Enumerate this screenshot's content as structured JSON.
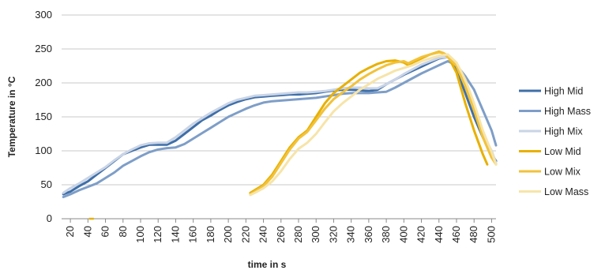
{
  "chart_data": {
    "type": "line",
    "title": "",
    "xlabel": "time in s",
    "ylabel": "Temperature in °C",
    "xlim": [
      10,
      505
    ],
    "ylim": [
      0,
      300
    ],
    "yticks": [
      0,
      50,
      100,
      150,
      200,
      250,
      300
    ],
    "xticks": [
      20,
      40,
      60,
      80,
      100,
      120,
      140,
      160,
      180,
      200,
      220,
      240,
      260,
      280,
      300,
      320,
      340,
      360,
      380,
      400,
      420,
      440,
      460,
      480,
      500
    ],
    "grid": "horizontal",
    "legend_position": "right",
    "series": [
      {
        "name": "High Mid",
        "color": "#3f6fa8",
        "points": [
          [
            12,
            36
          ],
          [
            20,
            40
          ],
          [
            30,
            48
          ],
          [
            40,
            55
          ],
          [
            50,
            65
          ],
          [
            60,
            75
          ],
          [
            70,
            85
          ],
          [
            80,
            95
          ],
          [
            90,
            100
          ],
          [
            100,
            105
          ],
          [
            110,
            109
          ],
          [
            120,
            109
          ],
          [
            130,
            109
          ],
          [
            140,
            115
          ],
          [
            150,
            125
          ],
          [
            160,
            135
          ],
          [
            170,
            145
          ],
          [
            180,
            152
          ],
          [
            190,
            160
          ],
          [
            200,
            167
          ],
          [
            210,
            172
          ],
          [
            220,
            176
          ],
          [
            230,
            179
          ],
          [
            240,
            180
          ],
          [
            250,
            181
          ],
          [
            260,
            182
          ],
          [
            270,
            183
          ],
          [
            280,
            183
          ],
          [
            290,
            184
          ],
          [
            300,
            185
          ],
          [
            310,
            187
          ],
          [
            320,
            189
          ],
          [
            330,
            190
          ],
          [
            340,
            190
          ],
          [
            350,
            189
          ],
          [
            360,
            188
          ],
          [
            370,
            190
          ],
          [
            380,
            198
          ],
          [
            390,
            205
          ],
          [
            400,
            212
          ],
          [
            410,
            218
          ],
          [
            420,
            224
          ],
          [
            430,
            230
          ],
          [
            440,
            236
          ],
          [
            450,
            238
          ],
          [
            455,
            233
          ],
          [
            460,
            220
          ],
          [
            470,
            185
          ],
          [
            480,
            150
          ],
          [
            490,
            120
          ],
          [
            500,
            95
          ],
          [
            505,
            85
          ]
        ]
      },
      {
        "name": "High Mass",
        "color": "#7e9ec8",
        "points": [
          [
            12,
            32
          ],
          [
            20,
            36
          ],
          [
            30,
            42
          ],
          [
            40,
            47
          ],
          [
            50,
            52
          ],
          [
            60,
            60
          ],
          [
            70,
            68
          ],
          [
            80,
            78
          ],
          [
            90,
            85
          ],
          [
            100,
            92
          ],
          [
            110,
            98
          ],
          [
            120,
            102
          ],
          [
            130,
            104
          ],
          [
            140,
            105
          ],
          [
            150,
            110
          ],
          [
            160,
            118
          ],
          [
            170,
            126
          ],
          [
            180,
            134
          ],
          [
            190,
            142
          ],
          [
            200,
            150
          ],
          [
            210,
            156
          ],
          [
            220,
            162
          ],
          [
            230,
            167
          ],
          [
            240,
            171
          ],
          [
            250,
            173
          ],
          [
            260,
            174
          ],
          [
            270,
            175
          ],
          [
            280,
            176
          ],
          [
            290,
            177
          ],
          [
            300,
            178
          ],
          [
            310,
            180
          ],
          [
            320,
            182
          ],
          [
            330,
            184
          ],
          [
            340,
            185
          ],
          [
            350,
            185
          ],
          [
            360,
            185
          ],
          [
            370,
            186
          ],
          [
            380,
            187
          ],
          [
            390,
            193
          ],
          [
            400,
            200
          ],
          [
            410,
            207
          ],
          [
            420,
            214
          ],
          [
            430,
            220
          ],
          [
            440,
            226
          ],
          [
            450,
            232
          ],
          [
            460,
            226
          ],
          [
            470,
            210
          ],
          [
            480,
            190
          ],
          [
            490,
            160
          ],
          [
            500,
            130
          ],
          [
            505,
            108
          ]
        ]
      },
      {
        "name": "High Mix",
        "color": "#c9d4e6",
        "points": [
          [
            12,
            38
          ],
          [
            20,
            45
          ],
          [
            30,
            52
          ],
          [
            40,
            60
          ],
          [
            50,
            68
          ],
          [
            60,
            76
          ],
          [
            70,
            86
          ],
          [
            80,
            95
          ],
          [
            90,
            102
          ],
          [
            100,
            108
          ],
          [
            110,
            111
          ],
          [
            120,
            112
          ],
          [
            130,
            112
          ],
          [
            140,
            120
          ],
          [
            150,
            130
          ],
          [
            160,
            140
          ],
          [
            170,
            148
          ],
          [
            180,
            156
          ],
          [
            190,
            163
          ],
          [
            200,
            170
          ],
          [
            210,
            175
          ],
          [
            220,
            178
          ],
          [
            230,
            181
          ],
          [
            240,
            182
          ],
          [
            250,
            183
          ],
          [
            260,
            184
          ],
          [
            270,
            185
          ],
          [
            280,
            186
          ],
          [
            290,
            186
          ],
          [
            300,
            187
          ],
          [
            310,
            188
          ],
          [
            320,
            190
          ],
          [
            330,
            192
          ],
          [
            340,
            193
          ],
          [
            350,
            193
          ],
          [
            360,
            192
          ],
          [
            370,
            192
          ],
          [
            380,
            198
          ],
          [
            390,
            205
          ],
          [
            400,
            213
          ],
          [
            410,
            220
          ],
          [
            420,
            227
          ],
          [
            430,
            232
          ],
          [
            440,
            237
          ],
          [
            450,
            238
          ],
          [
            460,
            225
          ],
          [
            470,
            195
          ],
          [
            480,
            160
          ],
          [
            490,
            125
          ],
          [
            500,
            100
          ],
          [
            505,
            82
          ]
        ]
      },
      {
        "name": "Low Mid",
        "color": "#e8b000",
        "points": [
          [
            225,
            38
          ],
          [
            230,
            42
          ],
          [
            240,
            50
          ],
          [
            250,
            65
          ],
          [
            260,
            85
          ],
          [
            270,
            105
          ],
          [
            280,
            120
          ],
          [
            290,
            130
          ],
          [
            300,
            150
          ],
          [
            310,
            170
          ],
          [
            320,
            185
          ],
          [
            330,
            195
          ],
          [
            340,
            205
          ],
          [
            350,
            215
          ],
          [
            360,
            222
          ],
          [
            370,
            228
          ],
          [
            380,
            232
          ],
          [
            390,
            233
          ],
          [
            400,
            230
          ],
          [
            405,
            226
          ],
          [
            410,
            230
          ],
          [
            420,
            236
          ],
          [
            430,
            242
          ],
          [
            440,
            246
          ],
          [
            445,
            244
          ],
          [
            450,
            240
          ],
          [
            460,
            215
          ],
          [
            470,
            170
          ],
          [
            480,
            130
          ],
          [
            490,
            95
          ],
          [
            495,
            80
          ]
        ]
      },
      {
        "name": "Low Mix",
        "color": "#f2c23a",
        "points": [
          [
            225,
            36
          ],
          [
            230,
            40
          ],
          [
            240,
            48
          ],
          [
            250,
            62
          ],
          [
            260,
            82
          ],
          [
            270,
            102
          ],
          [
            280,
            118
          ],
          [
            290,
            128
          ],
          [
            300,
            145
          ],
          [
            310,
            162
          ],
          [
            320,
            176
          ],
          [
            330,
            186
          ],
          [
            340,
            195
          ],
          [
            350,
            205
          ],
          [
            360,
            213
          ],
          [
            370,
            220
          ],
          [
            380,
            226
          ],
          [
            390,
            230
          ],
          [
            400,
            232
          ],
          [
            405,
            229
          ],
          [
            410,
            232
          ],
          [
            420,
            238
          ],
          [
            430,
            242
          ],
          [
            440,
            245
          ],
          [
            445,
            244
          ],
          [
            450,
            238
          ],
          [
            460,
            225
          ],
          [
            470,
            195
          ],
          [
            480,
            160
          ],
          [
            490,
            120
          ],
          [
            500,
            90
          ],
          [
            505,
            80
          ]
        ]
      },
      {
        "name": "Low Mass",
        "color": "#f7e4a8",
        "points": [
          [
            225,
            35
          ],
          [
            230,
            38
          ],
          [
            240,
            45
          ],
          [
            250,
            55
          ],
          [
            260,
            70
          ],
          [
            270,
            88
          ],
          [
            280,
            103
          ],
          [
            290,
            112
          ],
          [
            300,
            125
          ],
          [
            310,
            142
          ],
          [
            320,
            158
          ],
          [
            330,
            170
          ],
          [
            340,
            180
          ],
          [
            350,
            190
          ],
          [
            360,
            198
          ],
          [
            370,
            206
          ],
          [
            380,
            212
          ],
          [
            390,
            218
          ],
          [
            400,
            222
          ],
          [
            410,
            226
          ],
          [
            420,
            232
          ],
          [
            430,
            236
          ],
          [
            440,
            240
          ],
          [
            450,
            242
          ],
          [
            460,
            230
          ],
          [
            470,
            205
          ],
          [
            480,
            170
          ],
          [
            490,
            130
          ],
          [
            500,
            98
          ],
          [
            505,
            80
          ]
        ]
      }
    ],
    "stray_marker": {
      "x": 44,
      "y": 0,
      "color": "#e8b000"
    }
  }
}
